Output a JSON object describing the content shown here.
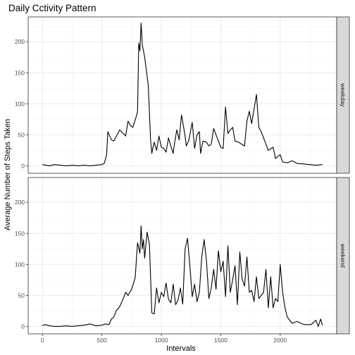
{
  "chart_data": {
    "type": "line",
    "title": "Daily Cctivity Pattern",
    "xlabel": "Intervals",
    "ylabel": "Average Number of Steps Taken",
    "xlim": [
      -120,
      2475
    ],
    "ylim": [
      -12,
      240
    ],
    "x_ticks": [
      0,
      500,
      1000,
      1500,
      2000
    ],
    "y_ticks": [
      0,
      50,
      100,
      150,
      200
    ],
    "grid": true,
    "facets": [
      {
        "name": "weekday",
        "x": [
          0,
          30,
          60,
          100,
          150,
          200,
          250,
          300,
          350,
          400,
          450,
          500,
          520,
          540,
          550,
          580,
          600,
          620,
          650,
          700,
          720,
          740,
          760,
          790,
          800,
          810,
          820,
          830,
          840,
          850,
          860,
          870,
          880,
          890,
          900,
          910,
          920,
          930,
          940,
          960,
          980,
          1000,
          1020,
          1040,
          1060,
          1080,
          1100,
          1110,
          1130,
          1150,
          1170,
          1200,
          1210,
          1230,
          1260,
          1280,
          1300,
          1320,
          1330,
          1350,
          1380,
          1400,
          1420,
          1440,
          1500,
          1520,
          1540,
          1560,
          1580,
          1600,
          1620,
          1650,
          1700,
          1720,
          1740,
          1760,
          1800,
          1820,
          1840,
          1850,
          1900,
          1940,
          1960,
          2000,
          2020,
          2060,
          2100,
          2140,
          2200,
          2250,
          2300,
          2355
        ],
        "y": [
          2,
          1,
          0,
          2,
          1,
          0,
          1,
          0,
          1,
          0,
          1,
          2,
          4,
          18,
          55,
          42,
          40,
          47,
          58,
          48,
          72,
          65,
          62,
          80,
          88,
          198,
          185,
          230,
          195,
          185,
          175,
          160,
          145,
          130,
          85,
          40,
          20,
          30,
          38,
          25,
          48,
          30,
          28,
          22,
          45,
          32,
          20,
          35,
          58,
          42,
          82,
          48,
          32,
          40,
          70,
          28,
          50,
          55,
          20,
          40,
          38,
          32,
          35,
          60,
          30,
          28,
          95,
          52,
          58,
          62,
          40,
          38,
          32,
          72,
          88,
          68,
          115,
          62,
          55,
          50,
          25,
          30,
          12,
          18,
          6,
          5,
          8,
          4,
          3,
          2,
          1,
          2
        ]
      },
      {
        "name": "weekend",
        "x": [
          0,
          20,
          40,
          60,
          100,
          150,
          200,
          250,
          300,
          350,
          400,
          450,
          500,
          530,
          560,
          580,
          600,
          620,
          650,
          680,
          700,
          720,
          750,
          780,
          800,
          820,
          830,
          840,
          850,
          860,
          880,
          900,
          920,
          940,
          960,
          980,
          1000,
          1020,
          1040,
          1060,
          1080,
          1100,
          1120,
          1140,
          1160,
          1180,
          1200,
          1220,
          1240,
          1260,
          1280,
          1300,
          1320,
          1340,
          1360,
          1380,
          1400,
          1420,
          1440,
          1460,
          1480,
          1500,
          1520,
          1540,
          1560,
          1580,
          1600,
          1620,
          1640,
          1660,
          1680,
          1700,
          1720,
          1740,
          1760,
          1780,
          1800,
          1820,
          1840,
          1860,
          1880,
          1900,
          1920,
          1940,
          1960,
          1980,
          2000,
          2020,
          2040,
          2060,
          2080,
          2100,
          2140,
          2200,
          2260,
          2300,
          2320,
          2340,
          2355
        ],
        "y": [
          1,
          3,
          2,
          1,
          0,
          0,
          1,
          0,
          1,
          2,
          4,
          1,
          2,
          4,
          3,
          12,
          15,
          25,
          32,
          45,
          55,
          50,
          60,
          78,
          135,
          118,
          162,
          125,
          140,
          110,
          152,
          132,
          22,
          20,
          62,
          38,
          55,
          48,
          70,
          44,
          38,
          68,
          35,
          42,
          62,
          36,
          125,
          142,
          98,
          48,
          68,
          40,
          55,
          112,
          140,
          105,
          45,
          62,
          92,
          60,
          122,
          88,
          105,
          48,
          130,
          55,
          75,
          98,
          35,
          120,
          76,
          65,
          112,
          55,
          58,
          40,
          80,
          45,
          50,
          55,
          92,
          30,
          80,
          30,
          45,
          40,
          100,
          55,
          30,
          15,
          10,
          5,
          8,
          3,
          3,
          10,
          0,
          12,
          2
        ]
      }
    ]
  }
}
